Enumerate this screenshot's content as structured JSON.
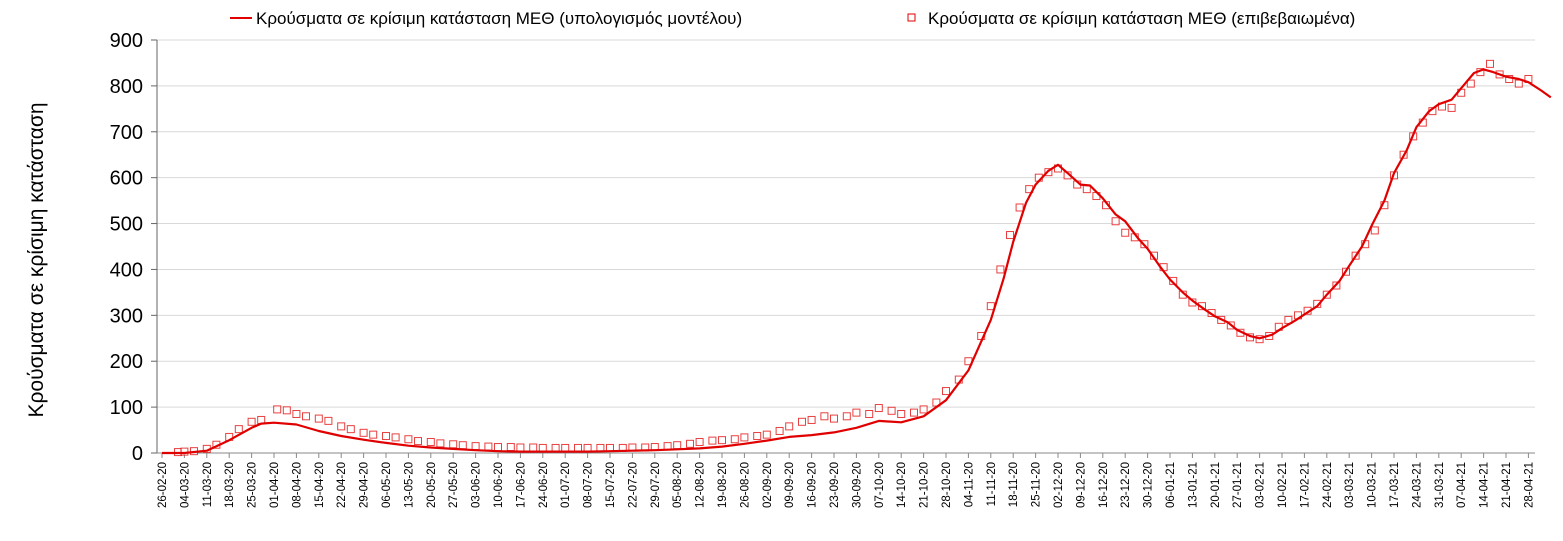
{
  "chart_data": {
    "type": "line",
    "title": "",
    "xlabel": "",
    "ylabel": "Κρούσματα σε κρίσιμη κατάσταση",
    "ylim": [
      0,
      900
    ],
    "yticks": [
      0,
      100,
      200,
      300,
      400,
      500,
      600,
      700,
      800,
      900
    ],
    "grid": "horizontal",
    "legend_position": "top",
    "x_start": "26-02-20",
    "x_end": "05-05-21",
    "tick_labels": [
      "26-02-20",
      "04-03-20",
      "11-03-20",
      "18-03-20",
      "25-03-20",
      "01-04-20",
      "08-04-20",
      "15-04-20",
      "22-04-20",
      "29-04-20",
      "06-05-20",
      "13-05-20",
      "20-05-20",
      "27-05-20",
      "03-06-20",
      "10-06-20",
      "17-06-20",
      "24-06-20",
      "01-07-20",
      "08-07-20",
      "15-07-20",
      "22-07-20",
      "29-07-20",
      "05-08-20",
      "12-08-20",
      "19-08-20",
      "26-08-20",
      "02-09-20",
      "09-09-20",
      "16-09-20",
      "23-09-20",
      "30-09-20",
      "07-10-20",
      "14-10-20",
      "21-10-20",
      "28-10-20",
      "04-11-20",
      "11-11-20",
      "18-11-20",
      "25-11-20",
      "02-12-20",
      "09-12-20",
      "16-12-20",
      "23-12-20",
      "30-12-20",
      "06-01-21",
      "13-01-21",
      "20-01-21",
      "27-01-21",
      "03-02-21",
      "10-02-21",
      "17-02-21",
      "24-02-21",
      "03-03-21",
      "10-03-21",
      "17-03-21",
      "24-03-21",
      "31-03-21",
      "07-04-21",
      "14-04-21",
      "21-04-21",
      "28-04-21"
    ],
    "series": [
      {
        "name": "Κρούσματα σε κρίσιμη κατάσταση ΜΕΘ (υπολογισμός μοντέλου)",
        "kind": "line",
        "color": "#e00000",
        "points": [
          [
            "26-02-20",
            0
          ],
          [
            "04-03-20",
            0
          ],
          [
            "11-03-20",
            5
          ],
          [
            "18-03-20",
            28
          ],
          [
            "25-03-20",
            55
          ],
          [
            "28-03-20",
            64
          ],
          [
            "01-04-20",
            66
          ],
          [
            "08-04-20",
            62
          ],
          [
            "15-04-20",
            48
          ],
          [
            "22-04-20",
            37
          ],
          [
            "29-04-20",
            29
          ],
          [
            "06-05-20",
            22
          ],
          [
            "13-05-20",
            16
          ],
          [
            "20-05-20",
            12
          ],
          [
            "27-05-20",
            9
          ],
          [
            "03-06-20",
            6
          ],
          [
            "10-06-20",
            4
          ],
          [
            "17-06-20",
            3
          ],
          [
            "24-06-20",
            3
          ],
          [
            "01-07-20",
            3
          ],
          [
            "08-07-20",
            3
          ],
          [
            "15-07-20",
            4
          ],
          [
            "22-07-20",
            5
          ],
          [
            "29-07-20",
            6
          ],
          [
            "05-08-20",
            8
          ],
          [
            "12-08-20",
            10
          ],
          [
            "19-08-20",
            14
          ],
          [
            "26-08-20",
            20
          ],
          [
            "02-09-20",
            27
          ],
          [
            "09-09-20",
            35
          ],
          [
            "16-09-20",
            39
          ],
          [
            "23-09-20",
            45
          ],
          [
            "30-09-20",
            55
          ],
          [
            "07-10-20",
            70
          ],
          [
            "14-10-20",
            67
          ],
          [
            "21-10-20",
            80
          ],
          [
            "28-10-20",
            115
          ],
          [
            "04-11-20",
            180
          ],
          [
            "11-11-20",
            290
          ],
          [
            "15-11-20",
            380
          ],
          [
            "18-11-20",
            460
          ],
          [
            "22-11-20",
            545
          ],
          [
            "25-11-20",
            585
          ],
          [
            "29-11-20",
            615
          ],
          [
            "02-12-20",
            628
          ],
          [
            "05-12-20",
            610
          ],
          [
            "09-12-20",
            585
          ],
          [
            "12-12-20",
            583
          ],
          [
            "16-12-20",
            555
          ],
          [
            "20-12-20",
            520
          ],
          [
            "23-12-20",
            505
          ],
          [
            "27-12-20",
            468
          ],
          [
            "30-12-20",
            445
          ],
          [
            "03-01-21",
            405
          ],
          [
            "06-01-21",
            378
          ],
          [
            "10-01-21",
            350
          ],
          [
            "13-01-21",
            332
          ],
          [
            "17-01-21",
            312
          ],
          [
            "20-01-21",
            298
          ],
          [
            "24-01-21",
            285
          ],
          [
            "27-01-21",
            268
          ],
          [
            "31-01-21",
            255
          ],
          [
            "03-02-21",
            250
          ],
          [
            "07-02-21",
            258
          ],
          [
            "10-02-21",
            272
          ],
          [
            "14-02-21",
            288
          ],
          [
            "17-02-21",
            302
          ],
          [
            "21-02-21",
            320
          ],
          [
            "24-02-21",
            345
          ],
          [
            "28-02-21",
            375
          ],
          [
            "03-03-21",
            408
          ],
          [
            "07-03-21",
            450
          ],
          [
            "10-03-21",
            495
          ],
          [
            "14-03-21",
            550
          ],
          [
            "17-03-21",
            610
          ],
          [
            "21-03-21",
            660
          ],
          [
            "24-03-21",
            710
          ],
          [
            "28-03-21",
            745
          ],
          [
            "31-03-21",
            760
          ],
          [
            "04-04-21",
            770
          ],
          [
            "07-04-21",
            795
          ],
          [
            "11-04-21",
            828
          ],
          [
            "14-04-21",
            836
          ],
          [
            "17-04-21",
            830
          ],
          [
            "21-04-21",
            820
          ],
          [
            "25-04-21",
            815
          ],
          [
            "28-04-21",
            808
          ],
          [
            "02-05-21",
            790
          ],
          [
            "05-05-21",
            775
          ]
        ]
      },
      {
        "name": "Κρούσματα σε κρίσιμη κατάσταση ΜΕΘ (επιβεβαιωμένα)",
        "kind": "markers",
        "color": "#e00000",
        "points": [
          [
            "02-03-20",
            2
          ],
          [
            "04-03-20",
            3
          ],
          [
            "07-03-20",
            4
          ],
          [
            "11-03-20",
            9
          ],
          [
            "14-03-20",
            18
          ],
          [
            "18-03-20",
            35
          ],
          [
            "21-03-20",
            52
          ],
          [
            "25-03-20",
            68
          ],
          [
            "28-03-20",
            72
          ],
          [
            "02-04-20",
            95
          ],
          [
            "05-04-20",
            93
          ],
          [
            "08-04-20",
            85
          ],
          [
            "11-04-20",
            80
          ],
          [
            "15-04-20",
            75
          ],
          [
            "18-04-20",
            70
          ],
          [
            "22-04-20",
            58
          ],
          [
            "25-04-20",
            52
          ],
          [
            "29-04-20",
            44
          ],
          [
            "02-05-20",
            40
          ],
          [
            "06-05-20",
            37
          ],
          [
            "09-05-20",
            34
          ],
          [
            "13-05-20",
            30
          ],
          [
            "16-05-20",
            26
          ],
          [
            "20-05-20",
            24
          ],
          [
            "23-05-20",
            21
          ],
          [
            "27-05-20",
            19
          ],
          [
            "30-05-20",
            17
          ],
          [
            "03-06-20",
            15
          ],
          [
            "07-06-20",
            14
          ],
          [
            "10-06-20",
            13
          ],
          [
            "14-06-20",
            13
          ],
          [
            "17-06-20",
            12
          ],
          [
            "21-06-20",
            12
          ],
          [
            "24-06-20",
            11
          ],
          [
            "28-06-20",
            11
          ],
          [
            "01-07-20",
            11
          ],
          [
            "05-07-20",
            11
          ],
          [
            "08-07-20",
            11
          ],
          [
            "12-07-20",
            11
          ],
          [
            "15-07-20",
            11
          ],
          [
            "19-07-20",
            11
          ],
          [
            "22-07-20",
            12
          ],
          [
            "26-07-20",
            12
          ],
          [
            "29-07-20",
            13
          ],
          [
            "02-08-20",
            15
          ],
          [
            "05-08-20",
            17
          ],
          [
            "09-08-20",
            20
          ],
          [
            "12-08-20",
            24
          ],
          [
            "16-08-20",
            27
          ],
          [
            "19-08-20",
            28
          ],
          [
            "23-08-20",
            30
          ],
          [
            "26-08-20",
            34
          ],
          [
            "30-08-20",
            37
          ],
          [
            "02-09-20",
            40
          ],
          [
            "06-09-20",
            48
          ],
          [
            "09-09-20",
            58
          ],
          [
            "13-09-20",
            68
          ],
          [
            "16-09-20",
            72
          ],
          [
            "20-09-20",
            80
          ],
          [
            "23-09-20",
            75
          ],
          [
            "27-09-20",
            80
          ],
          [
            "30-09-20",
            88
          ],
          [
            "04-10-20",
            85
          ],
          [
            "07-10-20",
            98
          ],
          [
            "11-10-20",
            92
          ],
          [
            "14-10-20",
            85
          ],
          [
            "18-10-20",
            88
          ],
          [
            "21-10-20",
            95
          ],
          [
            "25-10-20",
            110
          ],
          [
            "28-10-20",
            135
          ],
          [
            "01-11-20",
            160
          ],
          [
            "04-11-20",
            200
          ],
          [
            "08-11-20",
            255
          ],
          [
            "11-11-20",
            320
          ],
          [
            "14-11-20",
            400
          ],
          [
            "17-11-20",
            475
          ],
          [
            "20-11-20",
            535
          ],
          [
            "23-11-20",
            575
          ],
          [
            "26-11-20",
            600
          ],
          [
            "29-11-20",
            612
          ],
          [
            "02-12-20",
            620
          ],
          [
            "05-12-20",
            605
          ],
          [
            "08-12-20",
            585
          ],
          [
            "11-12-20",
            575
          ],
          [
            "14-12-20",
            560
          ],
          [
            "17-12-20",
            540
          ],
          [
            "20-12-20",
            505
          ],
          [
            "23-12-20",
            480
          ],
          [
            "26-12-20",
            470
          ],
          [
            "29-12-20",
            455
          ],
          [
            "01-01-21",
            430
          ],
          [
            "04-01-21",
            405
          ],
          [
            "07-01-21",
            375
          ],
          [
            "10-01-21",
            345
          ],
          [
            "13-01-21",
            328
          ],
          [
            "16-01-21",
            320
          ],
          [
            "19-01-21",
            305
          ],
          [
            "22-01-21",
            290
          ],
          [
            "25-01-21",
            278
          ],
          [
            "28-01-21",
            262
          ],
          [
            "31-01-21",
            252
          ],
          [
            "03-02-21",
            248
          ],
          [
            "06-02-21",
            255
          ],
          [
            "09-02-21",
            275
          ],
          [
            "12-02-21",
            290
          ],
          [
            "15-02-21",
            300
          ],
          [
            "18-02-21",
            310
          ],
          [
            "21-02-21",
            325
          ],
          [
            "24-02-21",
            345
          ],
          [
            "27-02-21",
            365
          ],
          [
            "02-03-21",
            395
          ],
          [
            "05-03-21",
            430
          ],
          [
            "08-03-21",
            455
          ],
          [
            "11-03-21",
            485
          ],
          [
            "14-03-21",
            540
          ],
          [
            "17-03-21",
            605
          ],
          [
            "20-03-21",
            650
          ],
          [
            "23-03-21",
            690
          ],
          [
            "26-03-21",
            720
          ],
          [
            "29-03-21",
            745
          ],
          [
            "01-04-21",
            755
          ],
          [
            "04-04-21",
            752
          ],
          [
            "07-04-21",
            785
          ],
          [
            "10-04-21",
            805
          ],
          [
            "13-04-21",
            830
          ],
          [
            "16-04-21",
            848
          ],
          [
            "19-04-21",
            825
          ],
          [
            "22-04-21",
            815
          ],
          [
            "25-04-21",
            805
          ],
          [
            "28-04-21",
            815
          ]
        ]
      }
    ]
  }
}
